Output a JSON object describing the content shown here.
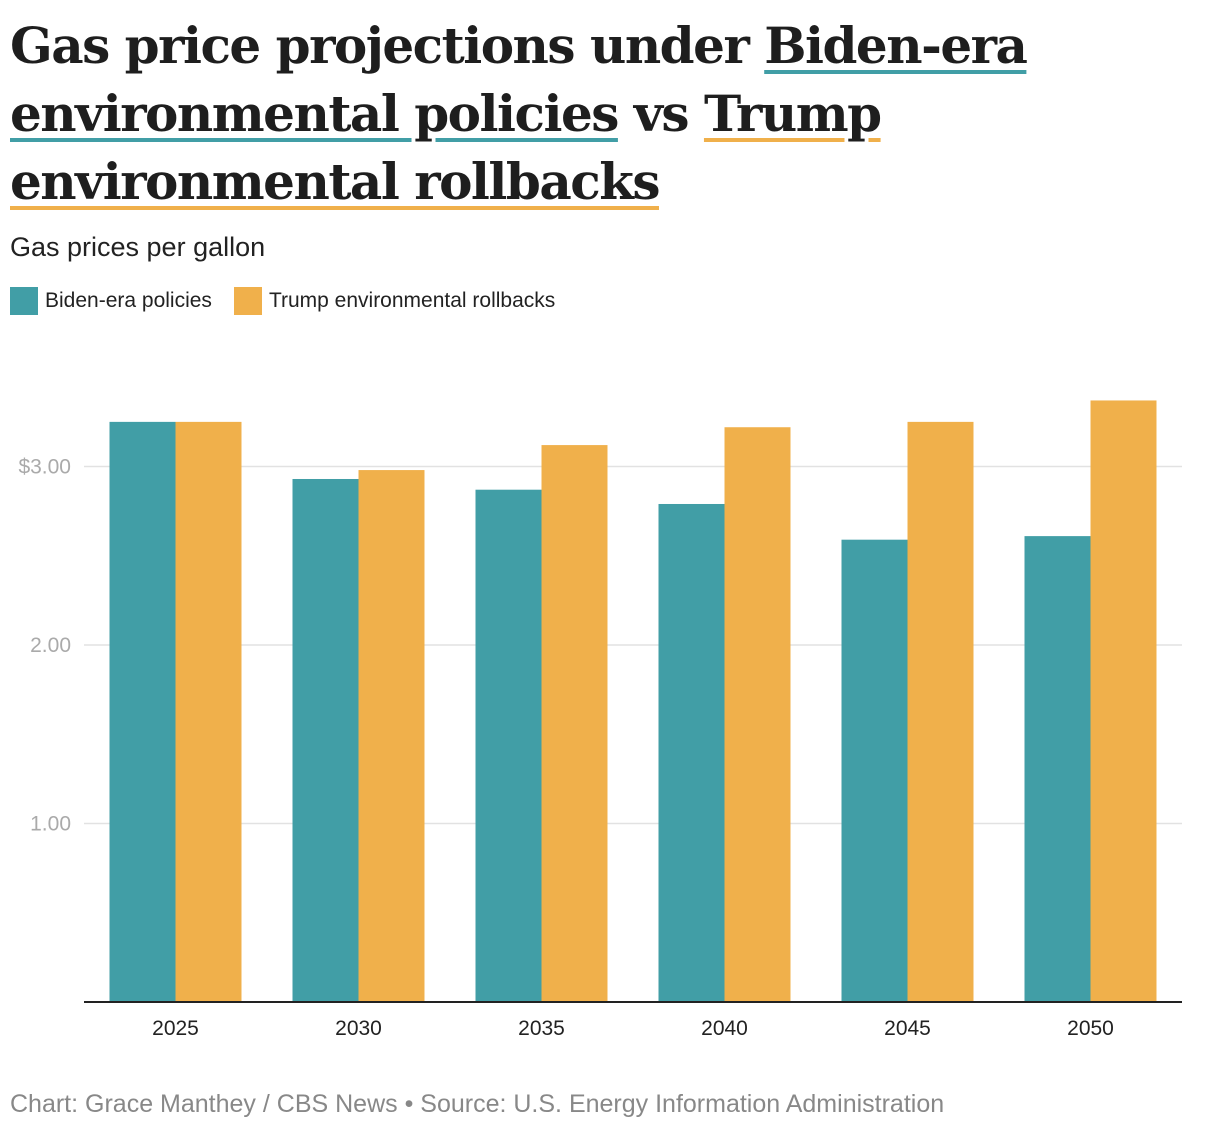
{
  "title": {
    "part1": "Gas price projections under ",
    "biden_link": "Biden-era environmental policies",
    "part2": " vs ",
    "trump_link": "Trump environmental rollbacks"
  },
  "subtitle": "Gas prices per gallon",
  "legend": [
    {
      "label": "Biden-era policies",
      "color": "#419ea6"
    },
    {
      "label": "Trump environmental rollbacks",
      "color": "#f0b04b"
    }
  ],
  "footer": "Chart: Grace Manthey / CBS News • Source: U.S. Energy Information Administration",
  "chart_data": {
    "type": "bar",
    "title": "Gas price projections under Biden-era environmental policies vs Trump environmental rollbacks",
    "ylabel": "Gas prices per gallon",
    "xlabel": "",
    "categories": [
      "2025",
      "2030",
      "2035",
      "2040",
      "2045",
      "2050"
    ],
    "series": [
      {
        "name": "Biden-era policies",
        "color": "#419ea6",
        "values": [
          3.25,
          2.93,
          2.87,
          2.79,
          2.59,
          2.61
        ]
      },
      {
        "name": "Trump environmental rollbacks",
        "color": "#f0b04b",
        "values": [
          3.25,
          2.98,
          3.12,
          3.22,
          3.25,
          3.37
        ]
      }
    ],
    "ylim": [
      0,
      3.5
    ],
    "yticks": [
      {
        "value": 1,
        "label": "1.00"
      },
      {
        "value": 2,
        "label": "2.00"
      },
      {
        "value": 3,
        "label": "$3.00"
      }
    ],
    "grid": true,
    "legend_position": "top-left"
  }
}
